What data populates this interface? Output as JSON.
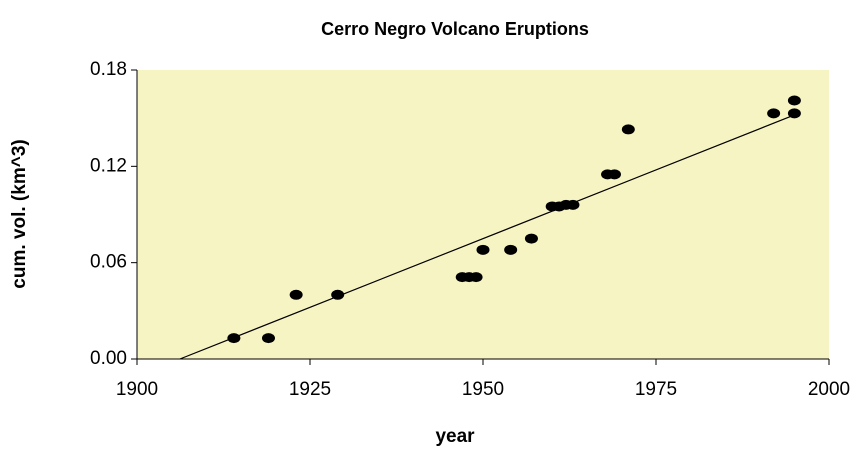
{
  "chart_data": {
    "type": "scatter",
    "title": "Cerro Negro Volcano Eruptions",
    "x_label": "year",
    "y_label": "cum. vol. (km^3)",
    "series": [
      {
        "color": "#000000",
        "x": [
          1914,
          1919,
          1923,
          1929,
          1947,
          1948,
          1949,
          1950,
          1954,
          1957,
          1960,
          1961,
          1962,
          1963,
          1968,
          1969,
          1971,
          1992,
          1995,
          1995
        ],
        "values": [
          0.013,
          0.013,
          0.04,
          0.04,
          0.051,
          0.051,
          0.051,
          0.068,
          0.068,
          0.075,
          0.095,
          0.095,
          0.096,
          0.096,
          0.115,
          0.115,
          0.143,
          0.153,
          0.153,
          0.161
        ]
      }
    ],
    "trendline": {
      "color": "#000000",
      "x": [
        1906.2,
        1995
      ],
      "values": [
        0,
        0.152
      ]
    },
    "xlim": [
      1900,
      2000
    ],
    "xticks": [
      1900,
      1925,
      1950,
      1975,
      2000
    ],
    "ylim": [
      0,
      0.18
    ],
    "yticks": [
      {
        "value": 0,
        "label": "0.00"
      },
      0.06,
      0.12,
      0.18
    ],
    "background": "#f7f4c4"
  }
}
